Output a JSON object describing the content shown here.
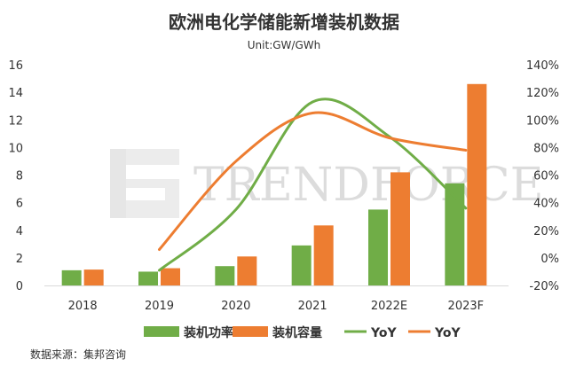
{
  "colors": {
    "green": "#70ad47",
    "orange": "#ed7d31",
    "text": "#333333",
    "watermark": "#dcdcdc",
    "axis": "#d9d9d9"
  },
  "watermark": {
    "text": "TRENDFORCE"
  },
  "source": "数据来源：集邦咨询",
  "chart_data": {
    "type": "bar",
    "title": "欧洲电化学储能新增装机数据",
    "subtitle": "Unit:GW/GWh",
    "categories": [
      "2018",
      "2019",
      "2020",
      "2021",
      "2022E",
      "2023F"
    ],
    "ylim": [
      0,
      16
    ],
    "yticks": [
      "0",
      "2",
      "4",
      "6",
      "8",
      "10",
      "12",
      "14",
      "16"
    ],
    "y2lim": [
      -20,
      140
    ],
    "y2ticks": [
      "-20%",
      "0%",
      "20%",
      "40%",
      "60%",
      "80%",
      "100%",
      "120%",
      "140%"
    ],
    "series": [
      {
        "name": "装机功率",
        "type": "bar",
        "axis": "left",
        "color": "#70ad47",
        "values": [
          1.1,
          1.0,
          1.4,
          2.9,
          5.5,
          7.4
        ]
      },
      {
        "name": "装机容量",
        "type": "bar",
        "axis": "left",
        "color": "#ed7d31",
        "values": [
          1.15,
          1.25,
          2.1,
          4.35,
          8.2,
          14.6
        ]
      },
      {
        "name": "YoY",
        "type": "line",
        "axis": "right",
        "color": "#70ad47",
        "values": [
          null,
          -9,
          35,
          113,
          88,
          36
        ]
      },
      {
        "name": "YoY",
        "type": "line",
        "axis": "right",
        "color": "#ed7d31",
        "values": [
          null,
          6,
          70,
          105,
          87,
          78
        ]
      }
    ],
    "legend_position": "bottom",
    "grid": false
  }
}
